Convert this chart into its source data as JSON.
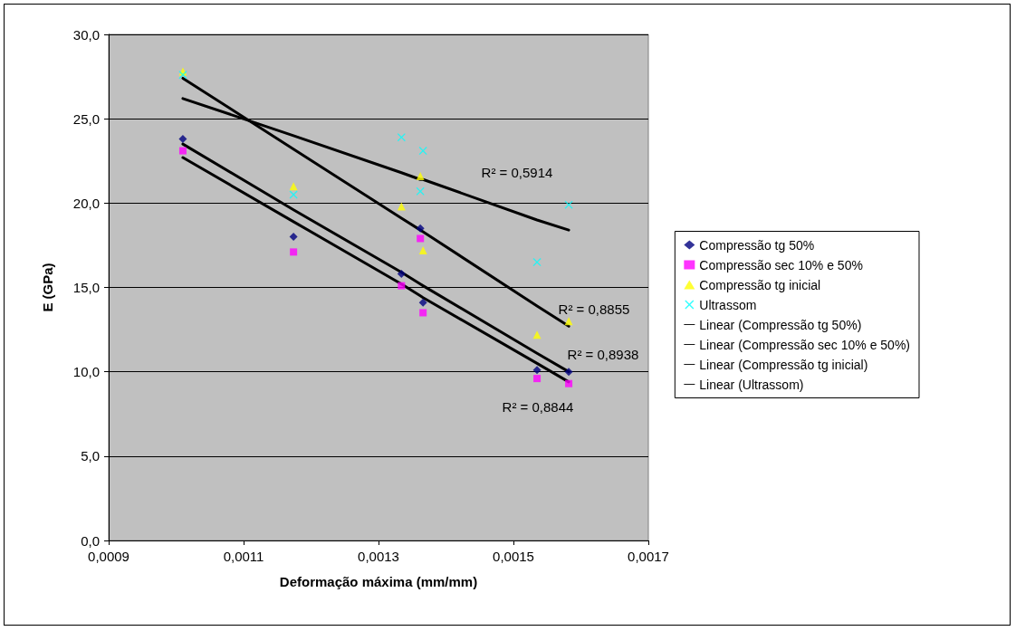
{
  "chart_data": {
    "type": "scatter",
    "xlabel": "Deformação máxima (mm/mm)",
    "ylabel": "E (GPa)",
    "xlim": [
      0.0009,
      0.0017
    ],
    "xticks": [
      {
        "value": 0.0009,
        "label": "0,0009"
      },
      {
        "value": 0.0011,
        "label": "0,0011"
      },
      {
        "value": 0.0013,
        "label": "0,0013"
      },
      {
        "value": 0.0015,
        "label": "0,0015"
      },
      {
        "value": 0.0017,
        "label": "0,0017"
      }
    ],
    "ylim": [
      0,
      30
    ],
    "yticks": [
      {
        "value": 0,
        "label": "0,0"
      },
      {
        "value": 5,
        "label": "5,0"
      },
      {
        "value": 10,
        "label": "10,0"
      },
      {
        "value": 15,
        "label": "15,0"
      },
      {
        "value": 20,
        "label": "20,0"
      },
      {
        "value": 25,
        "label": "25,0"
      },
      {
        "value": 30,
        "label": "30,0"
      }
    ],
    "grid": "y",
    "legend": "right",
    "x": [
      0.00101,
      0.001174,
      0.001334,
      0.001362,
      0.001366,
      0.001535,
      0.001582
    ],
    "series": [
      {
        "name": "Compressão tg 50%",
        "marker": "diamond",
        "color": "#000080",
        "values": [
          23.8,
          18.0,
          15.8,
          18.5,
          14.1,
          10.1,
          10.0
        ]
      },
      {
        "name": "Compressão sec 10% e 50%",
        "marker": "square",
        "color": "#ff00ff",
        "values": [
          23.1,
          17.1,
          15.1,
          17.9,
          13.5,
          9.6,
          9.3
        ]
      },
      {
        "name": "Compressão tg inicial",
        "marker": "triangle",
        "color": "#ffff00",
        "values": [
          27.8,
          21.0,
          19.8,
          21.6,
          17.2,
          12.2,
          13.0
        ]
      },
      {
        "name": "Ultrassom",
        "marker": "cross",
        "color": "#00ffff",
        "values": [
          27.6,
          20.5,
          23.9,
          20.7,
          23.1,
          16.5,
          19.9
        ]
      },
      {
        "name": "Linear (Compressão tg 50%)",
        "type": "line",
        "marker": "none",
        "color": "#000000",
        "values": [
          23.5,
          19.6,
          15.9,
          15.2,
          15.1,
          11.1,
          10.0
        ]
      },
      {
        "name": "Linear (Compressão sec 10% e 50%)",
        "type": "line",
        "marker": "none",
        "color": "#000000",
        "values": [
          22.7,
          18.9,
          15.2,
          14.5,
          14.4,
          10.5,
          9.4
        ]
      },
      {
        "name": "Linear (Compressão tg inicial)",
        "type": "line",
        "marker": "none",
        "color": "#000000",
        "values": [
          27.4,
          23.2,
          19.1,
          18.4,
          18.3,
          13.9,
          12.7
        ]
      },
      {
        "name": "Linear (Ultrassom)",
        "type": "line",
        "marker": "none",
        "color": "#000000",
        "values": [
          26.2,
          24.0,
          21.8,
          21.4,
          21.4,
          19.0,
          18.4
        ]
      }
    ],
    "annotations": [
      "R² = 0,5914",
      "R² = 0,8855",
      "R² = 0,8938",
      "R² = 0,8844"
    ]
  }
}
